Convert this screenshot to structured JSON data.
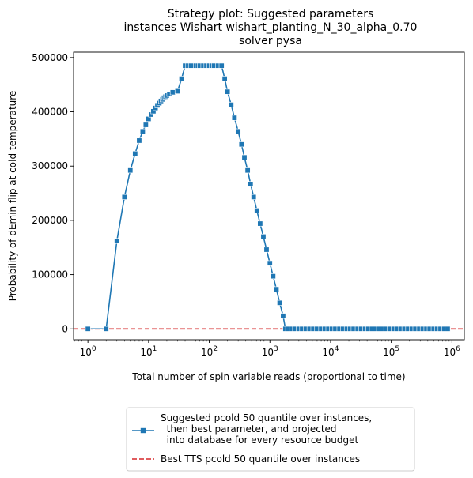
{
  "chart_data": {
    "type": "line",
    "title": [
      "Strategy plot: Suggested parameters",
      "instances Wishart wishart_planting_N_30_alpha_0.70",
      "solver pysa"
    ],
    "xlabel": "Total number of spin variable reads (proportional to time)",
    "ylabel": "Probability of dEmin flip at cold temperature",
    "xscale": "log",
    "xlim": [
      0.58,
      1600000
    ],
    "ylim": [
      -20000,
      510000
    ],
    "xticks": [
      {
        "value": 1,
        "base": "10",
        "exp": "0"
      },
      {
        "value": 10,
        "base": "10",
        "exp": "1"
      },
      {
        "value": 100,
        "base": "10",
        "exp": "2"
      },
      {
        "value": 1000,
        "base": "10",
        "exp": "3"
      },
      {
        "value": 10000,
        "base": "10",
        "exp": "4"
      },
      {
        "value": 100000,
        "base": "10",
        "exp": "5"
      },
      {
        "value": 1000000,
        "base": "10",
        "exp": "6"
      }
    ],
    "yticks": [
      {
        "value": 0,
        "label": "0"
      },
      {
        "value": 100000,
        "label": "100000"
      },
      {
        "value": 200000,
        "label": "200000"
      },
      {
        "value": 300000,
        "label": "300000"
      },
      {
        "value": 400000,
        "label": "400000"
      },
      {
        "value": 500000,
        "label": "500000"
      }
    ],
    "grid": false,
    "legend_position": "below-center",
    "series": [
      {
        "name": "Suggested pcold 50 quantile over instances,\n  then best parameter, and projected\n  into database for every resource budget",
        "color": "#1f77b4",
        "marker": "square",
        "linestyle": "solid",
        "x": [
          1,
          2,
          3,
          4,
          5,
          6,
          7,
          8,
          9,
          10,
          11,
          12,
          13,
          14,
          15,
          16,
          17,
          18,
          19,
          20,
          22,
          25,
          30,
          35,
          40,
          45,
          50,
          55,
          60,
          65,
          70,
          80,
          90,
          100,
          110,
          120,
          140,
          160,
          180,
          200,
          230,
          260,
          300,
          340,
          380,
          430,
          480,
          540,
          610,
          690,
          780,
          880,
          1000,
          1130,
          1280,
          1450,
          1650,
          1800,
          2000,
          2300,
          2600,
          3000,
          3400,
          3900,
          4500,
          5200,
          6000,
          7000,
          8000,
          9200,
          10500,
          12000,
          14000,
          16000,
          18500,
          21000,
          24000,
          28000,
          32000,
          37000,
          42000,
          48000,
          55000,
          63000,
          72000,
          83000,
          95000,
          110000,
          125000,
          145000,
          165000,
          190000,
          220000,
          250000,
          290000,
          330000,
          380000,
          430000,
          500000,
          570000,
          650000,
          750000,
          850000
        ],
        "y": [
          0,
          0,
          162000,
          243000,
          292000,
          323000,
          347000,
          364000,
          376000,
          387000,
          395000,
          401000,
          407000,
          412000,
          416000,
          420000,
          423000,
          426000,
          428000,
          430000,
          433000,
          436000,
          438000,
          461000,
          485000,
          485000,
          485000,
          485000,
          485000,
          485000,
          485000,
          485000,
          485000,
          485000,
          485000,
          485000,
          485000,
          485000,
          461000,
          437000,
          413000,
          389000,
          364000,
          340000,
          316000,
          292000,
          267000,
          243000,
          218000,
          194000,
          170000,
          146000,
          121000,
          97000,
          73000,
          48000,
          24000,
          0,
          0,
          0,
          0,
          0,
          0,
          0,
          0,
          0,
          0,
          0,
          0,
          0,
          0,
          0,
          0,
          0,
          0,
          0,
          0,
          0,
          0,
          0,
          0,
          0,
          0,
          0,
          0,
          0,
          0,
          0,
          0,
          0,
          0,
          0,
          0,
          0,
          0,
          0,
          0,
          0,
          0,
          0,
          0,
          0,
          0
        ]
      },
      {
        "name": "Best TTS pcold 50 quantile over instances",
        "color": "#d62728",
        "linestyle": "dashed",
        "hline_y": 0
      }
    ]
  }
}
